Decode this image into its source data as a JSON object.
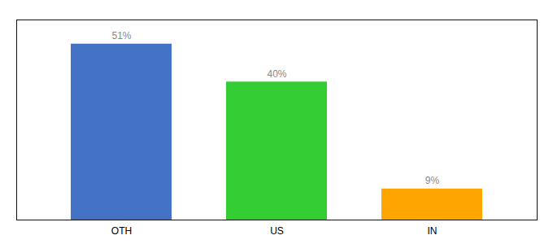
{
  "chart_data": {
    "type": "bar",
    "categories": [
      "OTH",
      "US",
      "IN"
    ],
    "values": [
      51,
      40,
      9
    ],
    "value_labels": [
      "51%",
      "40%",
      "9%"
    ],
    "colors": [
      "#4472C4",
      "#33CC33",
      "#FFA500"
    ],
    "ylim": [
      0,
      58
    ],
    "data_labels": true,
    "tick_labels": "x"
  }
}
